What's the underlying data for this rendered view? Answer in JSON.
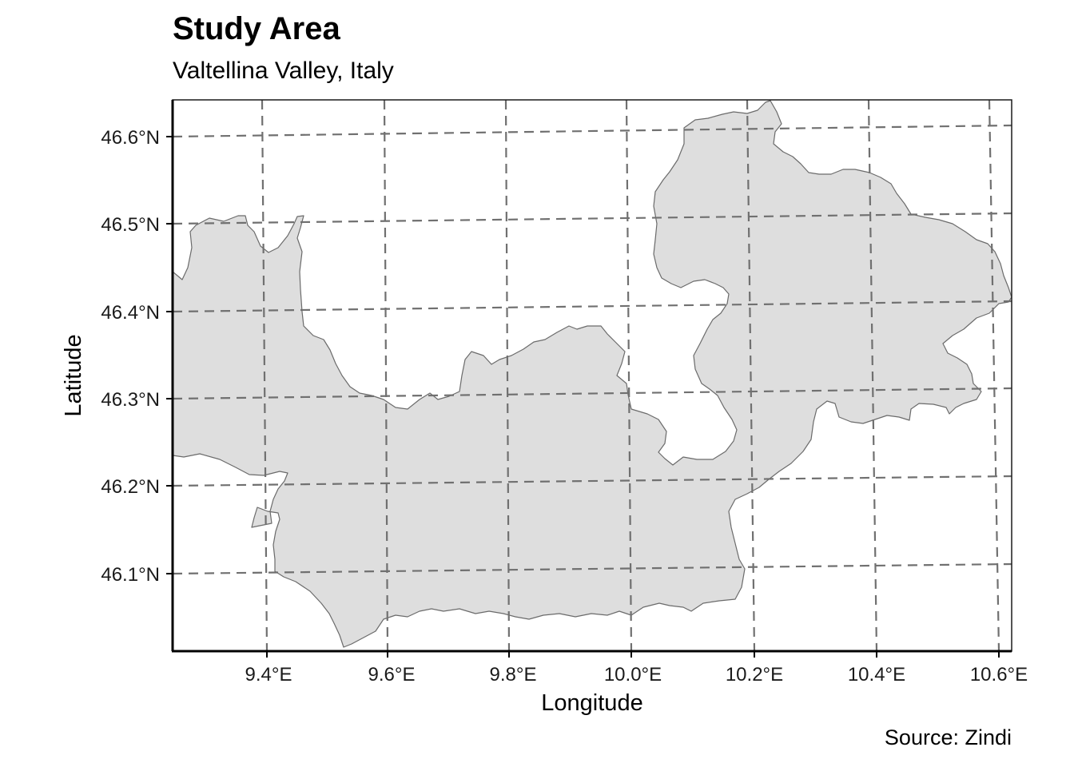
{
  "title": "Study Area",
  "subtitle": "Valtellina Valley, Italy",
  "caption": "Source: Zindi",
  "map": {
    "type": "choropleth-outline",
    "region_fill": "#dedede",
    "region_stroke": "#6b6b6b",
    "graticule_color": "#707070",
    "graticule_style": "dashed",
    "x_axis_label": "Longitude",
    "y_axis_label": "Latitude",
    "x_ticks": [
      "9.4°E",
      "9.6°E",
      "9.8°E",
      "10.0°E",
      "10.2°E",
      "10.4°E",
      "10.6°E"
    ],
    "y_ticks": [
      "46.6°N",
      "46.5°N",
      "46.4°N",
      "46.3°N",
      "46.2°N",
      "46.1°N"
    ],
    "lon_range": [
      9.25,
      10.62
    ],
    "lat_range": [
      46.01,
      46.64
    ]
  }
}
